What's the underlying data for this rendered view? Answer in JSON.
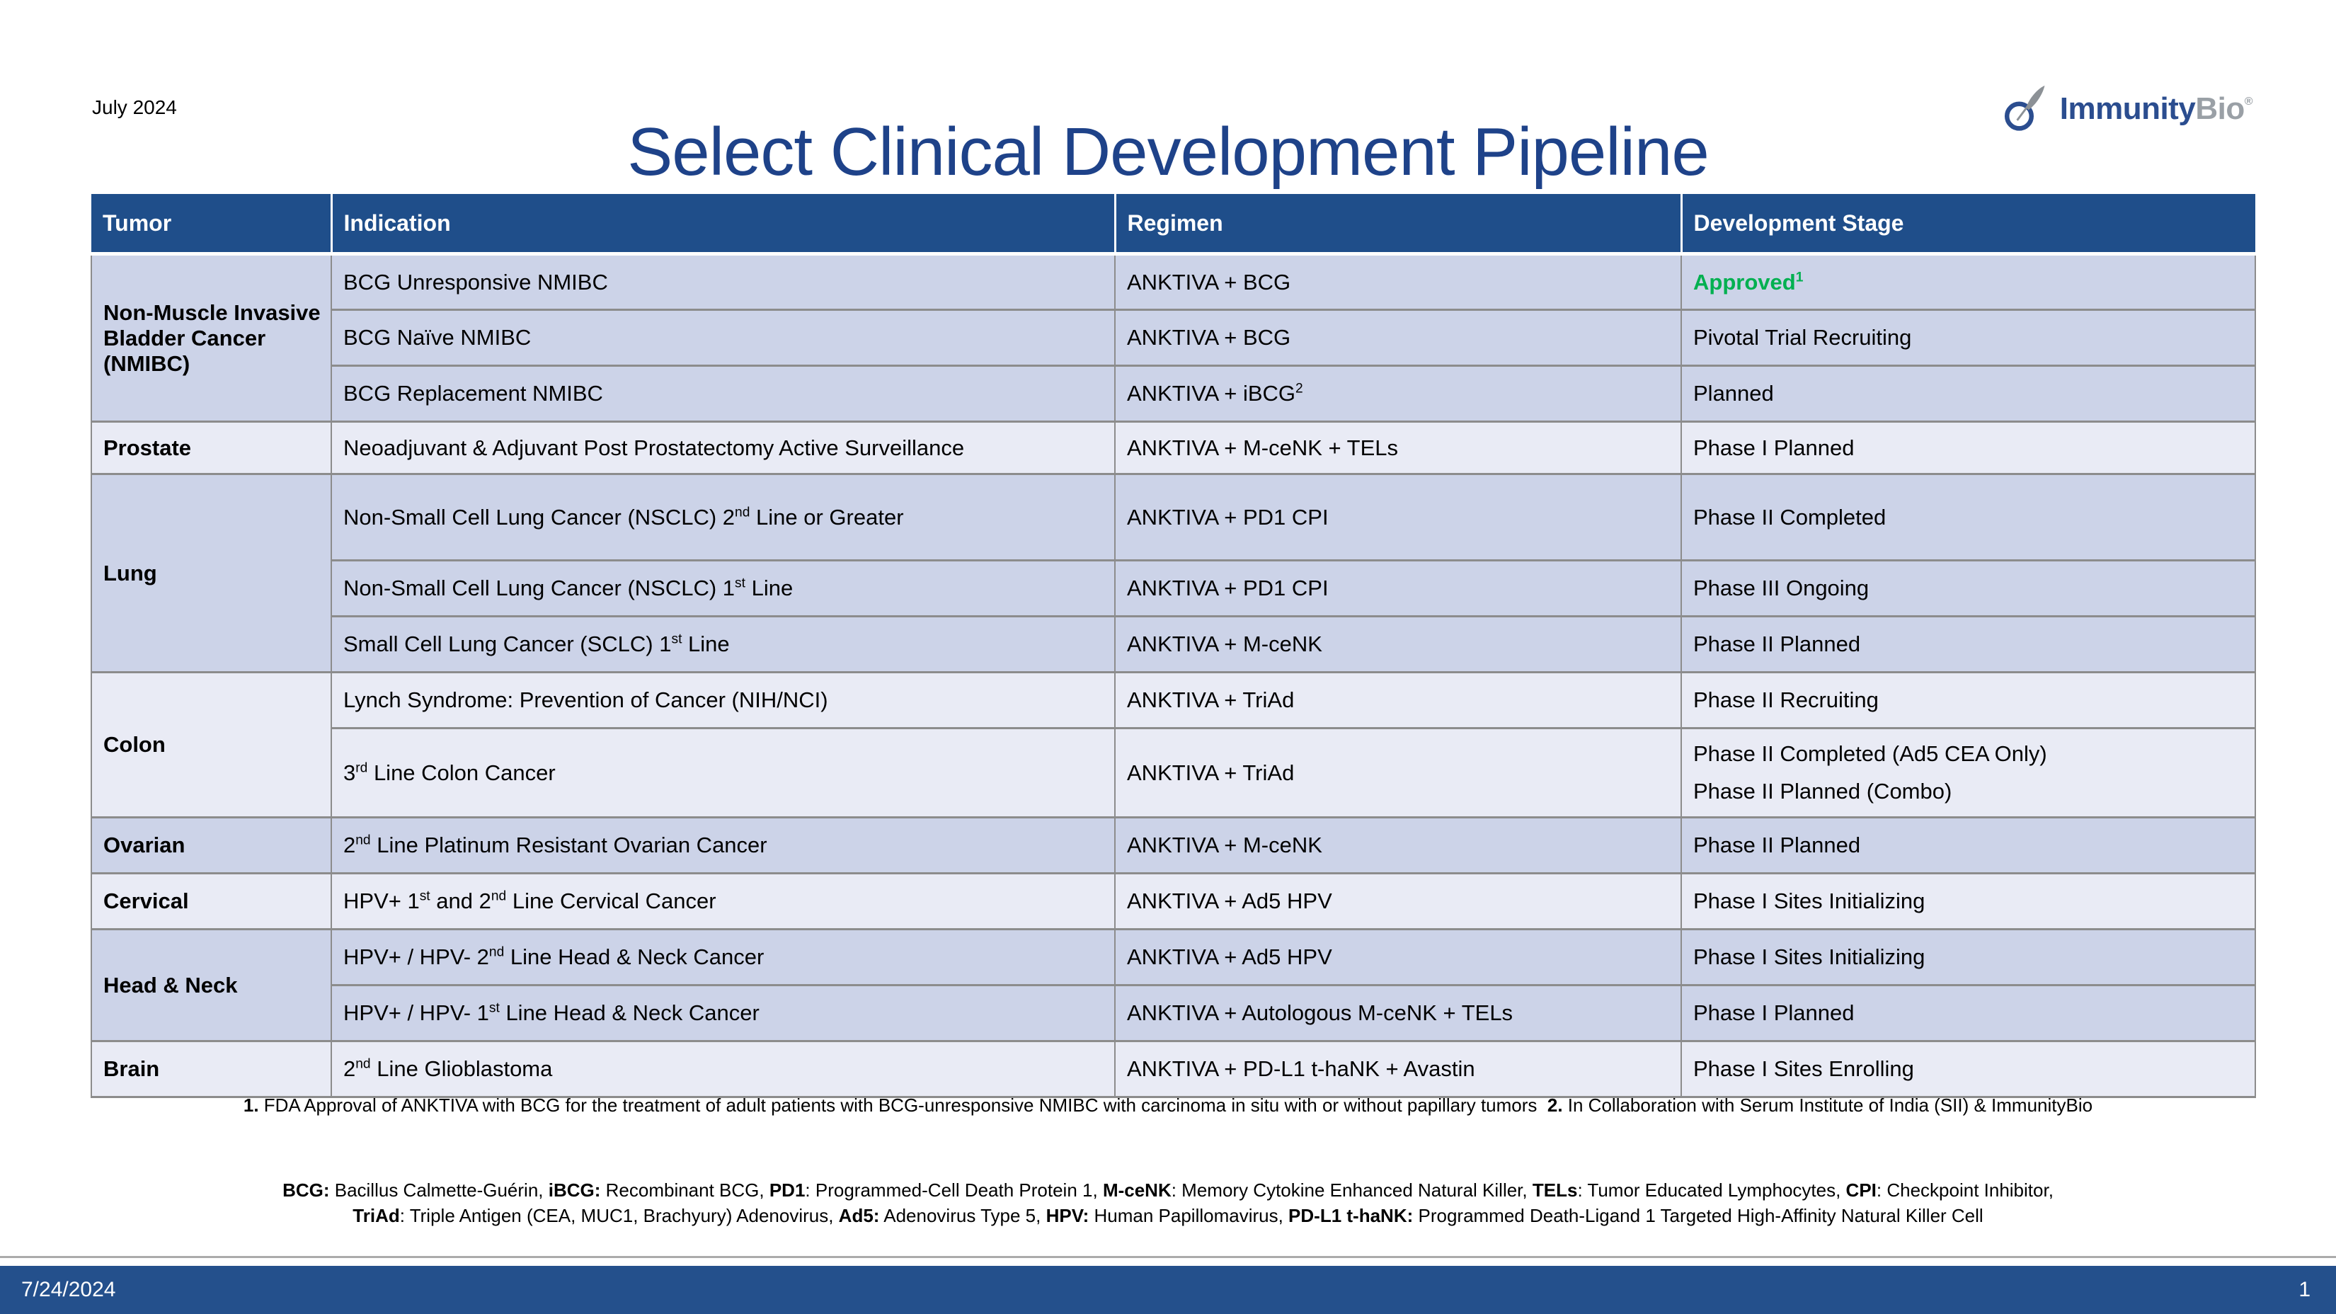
{
  "slide": {
    "date_label": "July 2024",
    "title": "Select Clinical Development Pipeline",
    "logo": {
      "text_primary": "Immunity",
      "text_secondary": "Bio",
      "reg_mark": "®"
    }
  },
  "table": {
    "headers": [
      "Tumor",
      "Indication",
      "Regimen",
      "Development Stage"
    ],
    "groups": [
      {
        "tumor": "Non-Muscle Invasive Bladder Cancer (NMIBC)",
        "rows": [
          {
            "indication": "BCG Unresponsive NMIBC",
            "regimen": "ANKTIVA + BCG",
            "stage": "Approved^{1}"
          },
          {
            "indication": "BCG Naïve NMIBC",
            "regimen": "ANKTIVA + BCG",
            "stage": "Pivotal Trial Recruiting"
          },
          {
            "indication": "BCG Replacement NMIBC",
            "regimen": "ANKTIVA + iBCG^{2}",
            "stage": "Planned"
          }
        ]
      },
      {
        "tumor": "Prostate",
        "rows": [
          {
            "indication": "Neoadjuvant & Adjuvant Post Prostatectomy Active Surveillance",
            "regimen": "ANKTIVA + M-ceNK + TELs",
            "stage": "Phase I Planned"
          }
        ]
      },
      {
        "tumor": "Lung",
        "rows": [
          {
            "indication": "Non-Small Cell Lung Cancer (NSCLC) 2^{nd} Line or Greater",
            "regimen": "ANKTIVA + PD1 CPI",
            "stage": "Phase II Completed"
          },
          {
            "indication": "Non-Small Cell Lung Cancer (NSCLC) 1^{st} Line",
            "regimen": "ANKTIVA + PD1 CPI",
            "stage": "Phase III Ongoing"
          },
          {
            "indication": "Small Cell Lung Cancer (SCLC) 1^{st} Line",
            "regimen": "ANKTIVA + M-ceNK",
            "stage": "Phase II Planned"
          }
        ]
      },
      {
        "tumor": "Colon",
        "rows": [
          {
            "indication": "Lynch Syndrome: Prevention of Cancer (NIH/NCI)",
            "regimen": "ANKTIVA + TriAd",
            "stage": "Phase II Recruiting"
          },
          {
            "indication": "3^{rd} Line Colon Cancer",
            "regimen": "ANKTIVA + TriAd",
            "stage": "Phase II Completed (Ad5 CEA Only)\nPhase II Planned (Combo)"
          }
        ]
      },
      {
        "tumor": "Ovarian",
        "rows": [
          {
            "indication": "2^{nd} Line Platinum Resistant Ovarian Cancer",
            "regimen": "ANKTIVA + M-ceNK",
            "stage": "Phase II Planned"
          }
        ]
      },
      {
        "tumor": "Cervical",
        "rows": [
          {
            "indication": "HPV+ 1^{st} and 2^{nd} Line Cervical Cancer",
            "regimen": "ANKTIVA + Ad5 HPV",
            "stage": "Phase I Sites Initializing"
          }
        ]
      },
      {
        "tumor": "Head & Neck",
        "rows": [
          {
            "indication": "HPV+ / HPV- 2^{nd} Line Head & Neck Cancer",
            "regimen": "ANKTIVA + Ad5 HPV",
            "stage": "Phase I Sites Initializing"
          },
          {
            "indication": "HPV+ / HPV- 1^{st} Line Head & Neck Cancer",
            "regimen": "ANKTIVA + Autologous M-ceNK + TELs",
            "stage": "Phase I Planned"
          }
        ]
      },
      {
        "tumor": "Brain",
        "rows": [
          {
            "indication": "2^{nd} Line Glioblastoma",
            "regimen": "ANKTIVA + PD-L1 t-haNK + Avastin",
            "stage": "Phase I Sites Enrolling"
          }
        ]
      }
    ]
  },
  "footnotes": {
    "line1": "**1.** FDA Approval of ANKTIVA with BCG for the treatment of adult patients with BCG-unresponsive NMIBC with carcinoma in situ with or without papillary tumors  **2.** In Collaboration with Serum Institute of India (SII) & ImmunityBio"
  },
  "abbreviations": {
    "line1": "**BCG:** Bacillus Calmette-Guérin, **iBCG:** Recombinant BCG, **PD1**: Programmed-Cell Death Protein 1, **M-ceNK**: Memory Cytokine Enhanced Natural Killer, **TELs**: Tumor Educated Lymphocytes, **CPI**: Checkpoint Inhibitor,",
    "line2": "**TriAd**: Triple Antigen (CEA, MUC1, Brachyury) Adenovirus, **Ad5:** Adenovirus Type 5, **HPV:** Human Papillomavirus, **PD-L1 t-haNK:** Programmed Death-Ligand 1 Targeted High-Affinity Natural Killer Cell"
  },
  "footer": {
    "date": "7/24/2024",
    "page": "1"
  },
  "colors": {
    "title_blue": "#1E4289",
    "header_blue": "#1F4E8A",
    "footer_blue": "#24508C",
    "row_dark": "#CCD3E8",
    "row_light": "#E9EBF5",
    "approved_green": "#00B050",
    "logo_blue": "#2B4D8F",
    "logo_gray": "#9AA0A6",
    "border_gray": "#8C8C8C"
  }
}
